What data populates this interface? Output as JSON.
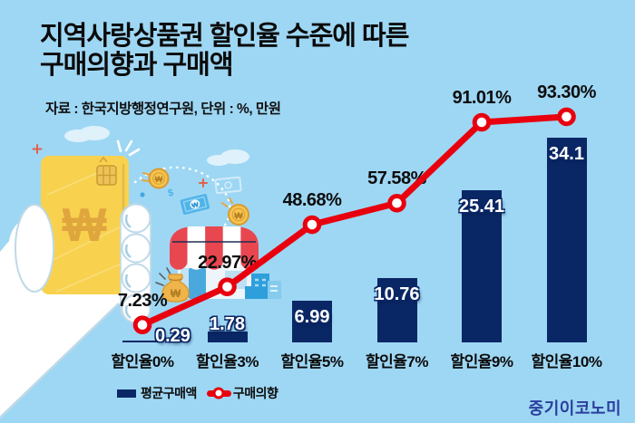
{
  "header": {
    "title_line1": "지역사랑상품권 할인율 수준에 따른",
    "title_line2": "구매의향과 구매액",
    "source": "자료 : 한국지방행정연구원, 단위 : %, 만원"
  },
  "chart_data": {
    "type": "bar",
    "subtype": "bar+line combo infographic",
    "title": "지역사랑상품권 할인율 수준에 따른 구매의향과 구매액",
    "source_note": "자료 : 한국지방행정연구원, 단위 : %, 만원",
    "categories": [
      "할인율0%",
      "할인율3%",
      "할인율5%",
      "할인율7%",
      "할인율9%",
      "할인율10%"
    ],
    "series": [
      {
        "name": "평균구매액",
        "type": "bar",
        "unit": "만원",
        "values": [
          0.29,
          1.78,
          6.99,
          10.76,
          25.41,
          34.1
        ],
        "value_labels": [
          "0.29",
          "1.78",
          "6.99",
          "10.76",
          "25.41",
          "34.1"
        ]
      },
      {
        "name": "구매의향",
        "type": "line",
        "unit": "%",
        "values": [
          7.23,
          22.97,
          48.68,
          57.58,
          91.01,
          93.3
        ],
        "value_labels": [
          "7.23%",
          "22.97%",
          "48.68%",
          "57.58%",
          "91.01%",
          "93.30%"
        ]
      }
    ],
    "bar_axis_range": [
      0,
      34.1
    ],
    "line_axis_range": [
      0,
      100
    ],
    "grid": false,
    "legend_position": "bottom-left",
    "annotations": "모든 데이터 레이블 표시"
  },
  "legend": {
    "bar_label": "평균구매액",
    "line_label": "구매의향"
  },
  "footer": {
    "logo": "중기이코노미"
  },
  "colors": {
    "background": "#9ED7F4",
    "bar": "#0A2765",
    "line": "#E8000F",
    "marker_fill": "#ffffff",
    "title": "#0B0B0B",
    "logo": "#2B3E9C",
    "card_yellow": "#F8D24E",
    "won_gold": "#DFA63E",
    "awning_red": "#E8474F"
  },
  "illustration_icons": [
    "hand-holding-card-icon",
    "won-gift-card-icon",
    "card-chip-icon",
    "store-icon",
    "money-bag-icon",
    "coin-icon",
    "banknote-icon",
    "buildings-icon",
    "cloud-icon",
    "plus-decoration",
    "dotted-path"
  ]
}
